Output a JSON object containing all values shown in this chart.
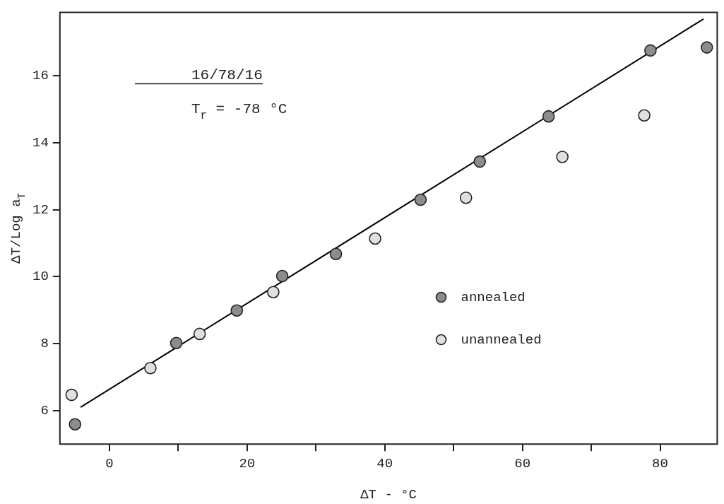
{
  "chart_data": {
    "type": "scatter",
    "xlabel": "ΔT - °C",
    "ylabel": "ΔT/Log a$_{T}$",
    "annotations": [
      "16/78/16",
      "T$_{r}$ = -78 °C"
    ],
    "xlim": [
      -7.2,
      88.3
    ],
    "ylim": [
      5,
      17.9
    ],
    "xticks": [
      0,
      {
        "value": 10,
        "label": null
      },
      20,
      {
        "value": 30,
        "label": null
      },
      40,
      {
        "value": 50,
        "label": null
      },
      60,
      {
        "value": 70,
        "label": null
      },
      80
    ],
    "yticks": [
      6,
      8,
      10,
      12,
      14,
      16
    ],
    "grid": false,
    "legend": "right",
    "marker": "circle",
    "series": [
      {
        "name": "annealed",
        "color": "#8c8c8c",
        "x": [
          -5.0,
          9.7,
          18.5,
          25.1,
          32.9,
          45.2,
          53.8,
          63.8,
          78.6,
          86.8
        ],
        "values": [
          5.59,
          8.02,
          8.99,
          10.02,
          10.68,
          12.3,
          13.44,
          14.79,
          16.76,
          16.85
        ]
      },
      {
        "name": "unannealed",
        "color": "#e0e0e0",
        "x": [
          -5.5,
          5.95,
          13.1,
          23.8,
          38.6,
          51.8,
          65.8,
          77.7
        ],
        "values": [
          6.47,
          7.27,
          8.29,
          9.54,
          11.14,
          12.36,
          13.58,
          14.82
        ]
      },
      {
        "type": "line",
        "color": "#000000",
        "marker": "none",
        "x": [
          -4.2,
          86.3
        ],
        "values": [
          6.1,
          17.7
        ]
      }
    ]
  }
}
